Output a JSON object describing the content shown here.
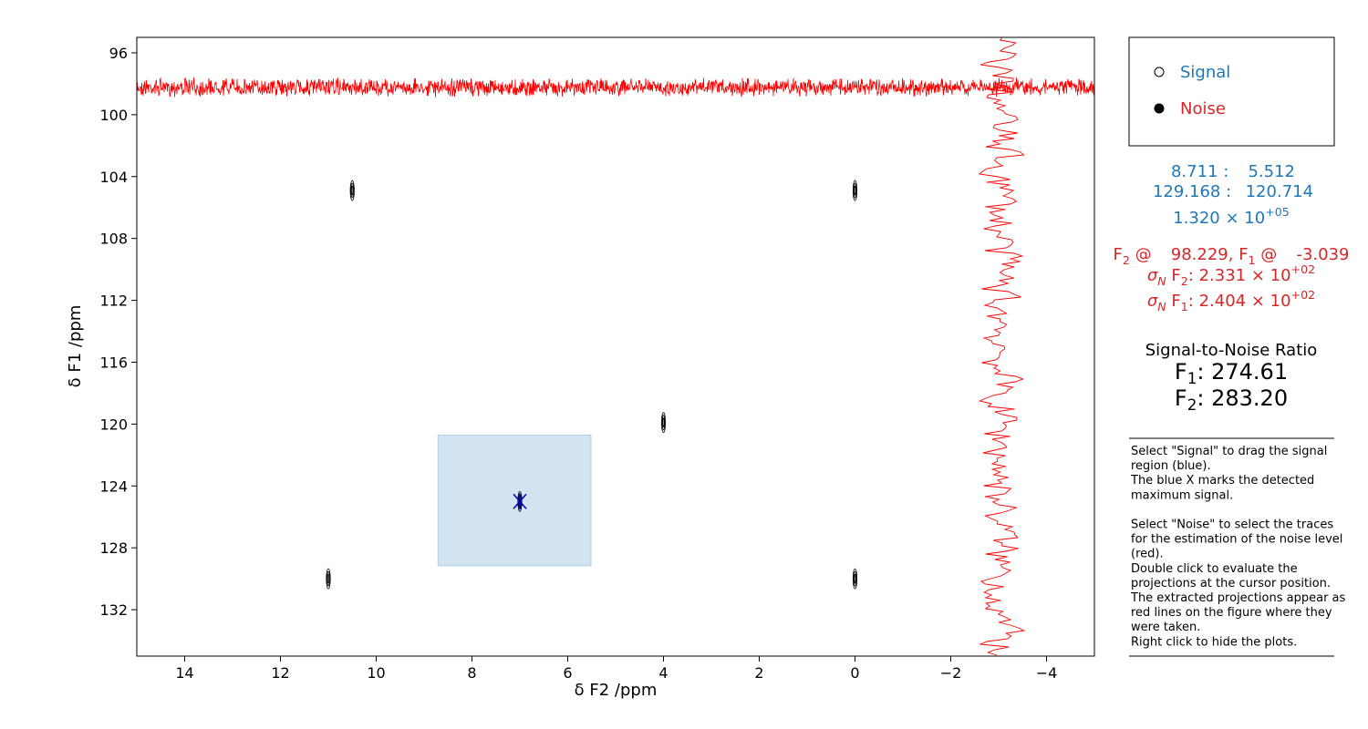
{
  "chart_data": {
    "type": "contour",
    "xlabel": "δ F2 /ppm",
    "ylabel": "δ F1 /ppm",
    "xlim": [
      15,
      -5
    ],
    "ylim": [
      135,
      95
    ],
    "xticks": [
      14,
      12,
      10,
      8,
      6,
      4,
      2,
      0,
      {
        "value": -2,
        "label": "−2"
      },
      {
        "value": -4,
        "label": "−4"
      }
    ],
    "yticks": [
      96,
      100,
      104,
      108,
      112,
      116,
      120,
      124,
      128,
      132
    ],
    "x": [
      10.5,
      0,
      4,
      7,
      11,
      0
    ],
    "values": [
      104.9,
      104.9,
      119.9,
      125,
      130,
      130
    ],
    "color": "#000000",
    "max_marker": {
      "x": 7,
      "y": 125,
      "color": "#0000cc"
    },
    "region_color": "#1f77b4",
    "noise_color": "#ff0000"
  },
  "panel": {
    "radio": [
      "Signal",
      "Noise"
    ],
    "radio_colors": [
      "#1f77b4",
      "#d62728"
    ],
    "region_f2": [
      {
        "num": 8.711
      },
      {
        "text": " :   "
      },
      {
        "num": 5.512
      }
    ],
    "region_f1": [
      {
        "num": 129.168
      },
      {
        "text": " :  "
      },
      {
        "num": 120.714
      }
    ],
    "max_signal": [
      {
        "text": "1.320 × 10"
      },
      {
        "sup": "+05"
      }
    ],
    "noise_position": [
      {
        "text": "F"
      },
      {
        "sub": "2"
      },
      {
        "text": " @   "
      },
      {
        "num": 98.229
      },
      {
        "text": ", F"
      },
      {
        "sub": "1"
      },
      {
        "text": " @   "
      },
      {
        "num": -3.039
      }
    ],
    "sigma_f2": [
      {
        "italic": "σ"
      },
      {
        "isub": "N"
      },
      {
        "text": " F"
      },
      {
        "sub": "2"
      },
      {
        "text": ": 2.331 × 10"
      },
      {
        "sup": "+02"
      }
    ],
    "sigma_f1": [
      {
        "italic": "σ"
      },
      {
        "isub": "N"
      },
      {
        "text": " F"
      },
      {
        "sub": "1"
      },
      {
        "text": ": 2.404 × 10"
      },
      {
        "sup": "+02"
      }
    ],
    "snr_title": "Signal-to-Noise Ratio",
    "snr_f1": [
      {
        "text": "F"
      },
      {
        "sub": "1"
      },
      {
        "text": ": 274.61"
      }
    ],
    "snr_f2": [
      {
        "text": "F"
      },
      {
        "sub": "2"
      },
      {
        "text": ": 283.20"
      }
    ],
    "help": [
      [
        "Select \"Signal\" to drag the signal",
        "region (blue).",
        "The blue X marks the detected",
        "maximum signal."
      ],
      [
        "Select \"Noise\" to select the traces",
        "for the estimation of the noise level",
        "(red).",
        "Double click to evaluate the",
        "projections at the cursor position.",
        "The extracted projections appear as",
        "red lines on the figure where they",
        "were taken.",
        "Right click to hide the plots."
      ]
    ]
  }
}
